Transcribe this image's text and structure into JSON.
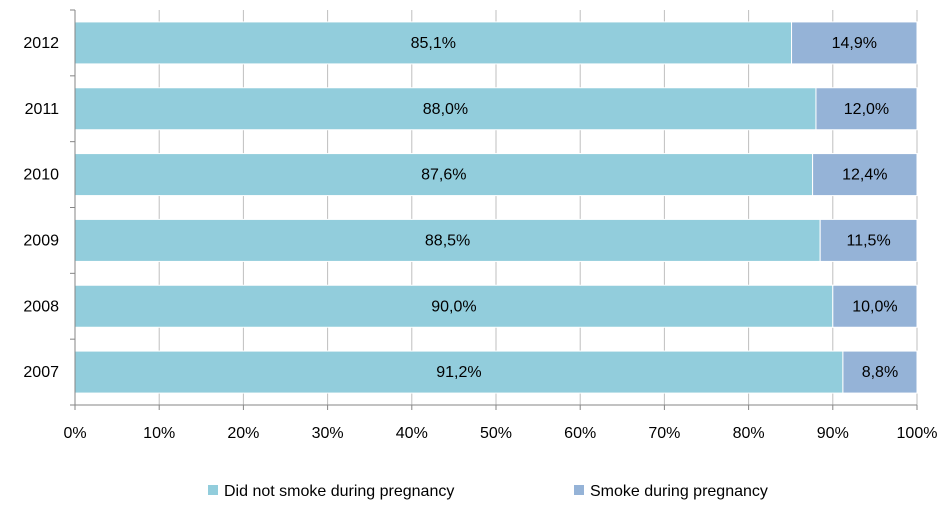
{
  "chart_data": {
    "type": "bar",
    "orientation": "horizontal",
    "stacked": true,
    "categories": [
      "2012",
      "2011",
      "2010",
      "2009",
      "2008",
      "2007"
    ],
    "series": [
      {
        "name": "Did not smoke during pregnancy",
        "values": [
          85.1,
          88.0,
          87.6,
          88.5,
          90.0,
          91.2
        ],
        "labels": [
          "85,1%",
          "88,0%",
          "87,6%",
          "88,5%",
          "90,0%",
          "91,2%"
        ],
        "color": "#92CDDC"
      },
      {
        "name": "Smoke during pregnancy",
        "values": [
          14.9,
          12.0,
          12.4,
          11.5,
          10.0,
          8.8
        ],
        "labels": [
          "14,9%",
          "12,0%",
          "12,4%",
          "11,5%",
          "10,0%",
          "8,8%"
        ],
        "color": "#95B3D7"
      }
    ],
    "xlim": [
      0,
      100
    ],
    "xticks": [
      0,
      10,
      20,
      30,
      40,
      50,
      60,
      70,
      80,
      90,
      100
    ],
    "xtick_labels": [
      "0%",
      "10%",
      "20%",
      "30%",
      "40%",
      "50%",
      "60%",
      "70%",
      "80%",
      "90%",
      "100%"
    ],
    "title": "",
    "xlabel": "",
    "ylabel": "",
    "grid": true,
    "legend_position": "bottom"
  }
}
